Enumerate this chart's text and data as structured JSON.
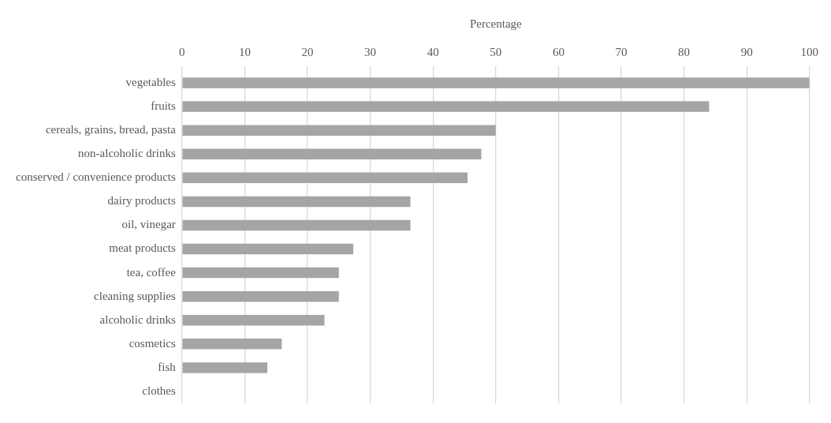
{
  "chart_data": {
    "type": "bar",
    "orientation": "horizontal",
    "xlabel": "Percentage",
    "categories": [
      "vegetables",
      "fruits",
      "cereals, grains, bread, pasta",
      "non-alcoholic drinks",
      "conserved / convenience products",
      "dairy products",
      "oil, vinegar",
      "meat products",
      "tea, coffee",
      "cleaning supplies",
      "alcoholic drinks",
      "cosmetics",
      "fish",
      "clothes"
    ],
    "values": [
      100,
      84.0,
      50.0,
      47.7,
      45.5,
      36.4,
      36.4,
      27.3,
      25.0,
      25.0,
      22.7,
      15.9,
      13.6,
      0
    ],
    "color": "#a5a5a5",
    "xlim": [
      0,
      100
    ],
    "xticks": [
      0,
      10,
      20,
      30,
      40,
      50,
      60,
      70,
      80,
      90,
      100
    ],
    "grid": "x",
    "legend": false
  }
}
